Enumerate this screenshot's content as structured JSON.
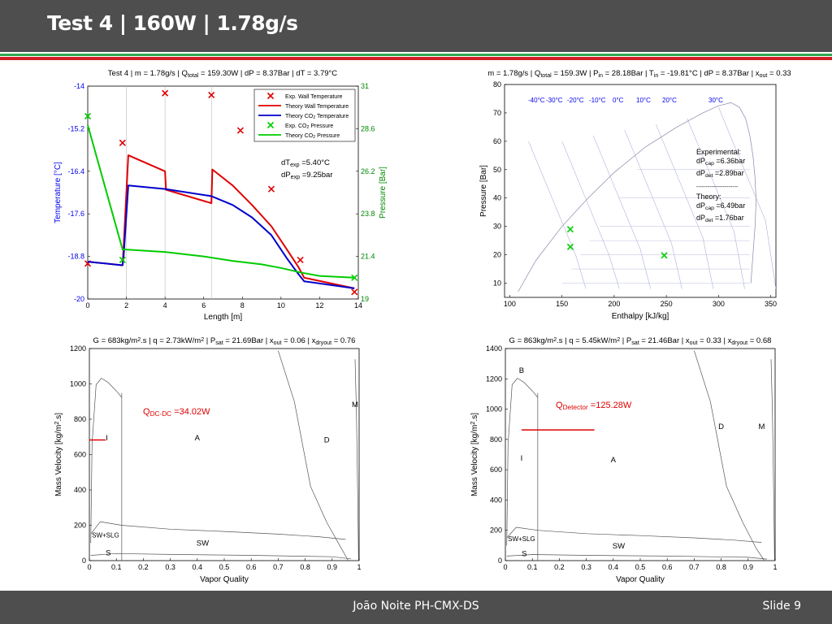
{
  "slide": {
    "title": "Test 4 |  160W | 1.78g/s",
    "footer_center": "João Noite PH-CMX-DS",
    "footer_right": "Slide 9"
  },
  "colors": {
    "header_bg": "#4e4e4e",
    "accent_green": "#2fa84f",
    "accent_red": "#d21f26",
    "wall_temp": "#e00000",
    "co2_temp": "#0000cc",
    "pressure": "#00cc00",
    "axis_blue": "#0000ee",
    "axis_green": "#008800"
  },
  "chart_data": [
    {
      "type": "line",
      "title": {
        "pre": "Test 4 | m = 1.78g/s | Q",
        "sub1": "total",
        "mid": " = 159.30W | dP = 8.37Bar | dT = 3.79°C"
      },
      "xlabel": "Length [m]",
      "ylabel": "Temperature [°C]",
      "y2label": "Pressure [Bar]",
      "xlim": [
        0,
        14
      ],
      "ylim": [
        -20,
        -14
      ],
      "y2lim": [
        19,
        31
      ],
      "xticks": [
        "0",
        "2",
        "4",
        "6",
        "8",
        "10",
        "12",
        "14"
      ],
      "yticks": [
        "-20",
        "-18.8",
        "-17.6",
        "-16.4",
        "-15.2",
        "-14"
      ],
      "y2ticks": [
        "19",
        "21.4",
        "23.8",
        "26.2",
        "28.6",
        "31"
      ],
      "legend": {
        "position": "top-right",
        "entries": [
          "Exp. Wall Temperature",
          "Theory  Wall Temperature",
          "Theory  CO2 Temperature",
          "Exp. CO2 Pressure",
          "Theory  CO2 Pressure"
        ]
      },
      "annotations": {
        "dT_exp": "dT",
        "dT_sub": "exp",
        "dT_val": " =5.40°C",
        "dP_exp": "dP",
        "dP_sub": "exp",
        "dP_val": " =9.25bar"
      },
      "series": [
        {
          "name": "Exp. Wall Temperature",
          "axis": "left",
          "style": "marker-x",
          "color": "#e00000",
          "x": [
            0,
            1.8,
            4.0,
            6.4,
            7.9,
            9.5,
            11.0,
            13.8
          ],
          "y": [
            -19.0,
            -15.6,
            -14.2,
            -14.25,
            -15.25,
            -16.9,
            -18.9,
            -19.8
          ]
        },
        {
          "name": "Theory  Wall Temperature",
          "axis": "left",
          "style": "line",
          "color": "#e00000",
          "x": [
            0,
            1.8,
            1.85,
            2.1,
            4.0,
            4.05,
            6.4,
            6.45,
            7.5,
            8.5,
            9.5,
            10.3,
            10.9,
            11.2,
            13.8
          ],
          "y": [
            -18.95,
            -19.05,
            -18.6,
            -15.95,
            -16.4,
            -16.92,
            -17.3,
            -16.35,
            -16.8,
            -17.35,
            -17.95,
            -18.6,
            -19.1,
            -19.4,
            -19.7
          ]
        },
        {
          "name": "Theory  CO2 Temperature",
          "axis": "left",
          "style": "line",
          "color": "#0000cc",
          "x": [
            0,
            1.8,
            1.85,
            2.1,
            4.0,
            6.4,
            7.5,
            8.5,
            9.5,
            10.3,
            10.9,
            11.2,
            13.8
          ],
          "y": [
            -18.95,
            -19.05,
            -18.85,
            -16.8,
            -16.9,
            -17.1,
            -17.35,
            -17.7,
            -18.2,
            -18.85,
            -19.3,
            -19.5,
            -19.7
          ]
        },
        {
          "name": "Exp. CO2 Pressure",
          "axis": "right",
          "style": "marker-x",
          "color": "#00cc00",
          "x": [
            0,
            1.8,
            13.8
          ],
          "y": [
            29.3,
            21.2,
            20.2
          ]
        },
        {
          "name": "Theory  CO2 Pressure",
          "axis": "right",
          "style": "line",
          "color": "#00cc00",
          "x": [
            0,
            1.8,
            4.0,
            6.0,
            7.5,
            9.0,
            10.0,
            11.0,
            12.0,
            13.8
          ],
          "y": [
            28.8,
            21.8,
            21.65,
            21.4,
            21.15,
            20.95,
            20.75,
            20.5,
            20.3,
            20.2
          ]
        }
      ]
    },
    {
      "type": "scatter",
      "title": {
        "pre": "m = 1.78g/s | Q",
        "sub1": "total",
        "mid": " = 159.3W | P",
        "sub2": "in",
        "mid2": " = 28.18Bar | T",
        "sub3": "in",
        "mid3": " = -19.81°C | dP = 8.37Bar | x",
        "sub4": "out",
        "post": " = 0.33"
      },
      "xlabel": "Enthalpy [kJ/kg]",
      "ylabel": "Pressure [Bar]",
      "xlim": [
        95,
        355
      ],
      "ylim": [
        5,
        80
      ],
      "xticks": [
        "100",
        "150",
        "200",
        "250",
        "300",
        "350"
      ],
      "yticks": [
        "10",
        "20",
        "30",
        "40",
        "50",
        "60",
        "70",
        "80"
      ],
      "isotherm_labels": [
        "-40°C",
        "-30°C",
        "-20°C",
        "-10°C",
        "0°C",
        "10°C",
        "20°C",
        "30°C"
      ],
      "annotations": [
        "Experimental:",
        "dP",
        "cap",
        "=6.36bar",
        "dP",
        "det",
        "=2.89bar",
        "----------------------",
        "Theory:",
        "dP",
        "cap",
        "=6.49bar",
        "dP",
        "det",
        "=1.76bar"
      ],
      "points": {
        "name": "",
        "color": "#00cc00",
        "x": [
          158,
          158,
          248
        ],
        "y": [
          29.0,
          22.8,
          19.8
        ]
      }
    },
    {
      "type": "line",
      "title": {
        "pre": "G = 683kg/m",
        "sup1": "2",
        "mid": ".s | q = 2.73kW/m",
        "sup2": "2",
        "mid2": " | P",
        "sub1": "sat",
        "mid3": " = 21.69Bar | x",
        "sub2": "out",
        "mid4": " = 0.06 | x",
        "sub3": "dryout",
        "post": " = 0.76"
      },
      "xlabel": "Vapor Quality",
      "ylabel": "Mass Velocity [kg/m2.s]",
      "xlim": [
        0,
        1
      ],
      "ylim": [
        0,
        1200
      ],
      "xticks": [
        "0",
        "0.1",
        "0.2",
        "0.3",
        "0.4",
        "0.5",
        "0.6",
        "0.7",
        "0.8",
        "0.9",
        "1"
      ],
      "yticks": [
        "0",
        "200",
        "400",
        "600",
        "800",
        "1000",
        "1200"
      ],
      "regions": [
        "I",
        "A",
        "D",
        "M",
        "SW+SLG",
        "SW",
        "S"
      ],
      "annotation": {
        "pre": "Q",
        "sub": "DC-DC",
        "post": " =34.02W"
      },
      "operating_line": {
        "x": [
          0,
          0.06
        ],
        "y": [
          683,
          683
        ]
      }
    },
    {
      "type": "line",
      "title": {
        "pre": "G = 863kg/m",
        "sup1": "2",
        "mid": ".s | q = 5.45kW/m",
        "sup2": "2",
        "mid2": " | P",
        "sub1": "sat",
        "mid3": " = 21.46Bar | x",
        "sub2": "out",
        "mid4": " = 0.33 | x",
        "sub3": "dryout",
        "post": " = 0.68"
      },
      "xlabel": "Vapor Quality",
      "ylabel": "Mass Velocity [kg/m2.s]",
      "xlim": [
        0,
        1
      ],
      "ylim": [
        0,
        1400
      ],
      "xticks": [
        "0",
        "0.1",
        "0.2",
        "0.3",
        "0.4",
        "0.5",
        "0.6",
        "0.7",
        "0.8",
        "0.9",
        "1"
      ],
      "yticks": [
        "0",
        "200",
        "400",
        "600",
        "800",
        "1000",
        "1200",
        "1400"
      ],
      "regions": [
        "B",
        "D",
        "M",
        "I",
        "A",
        "SW+SLG",
        "SW",
        "S"
      ],
      "annotation": {
        "pre": "Q",
        "sub": "Detector",
        "post": " =125.28W"
      },
      "operating_line": {
        "x": [
          0.06,
          0.33
        ],
        "y": [
          863,
          863
        ]
      }
    }
  ]
}
